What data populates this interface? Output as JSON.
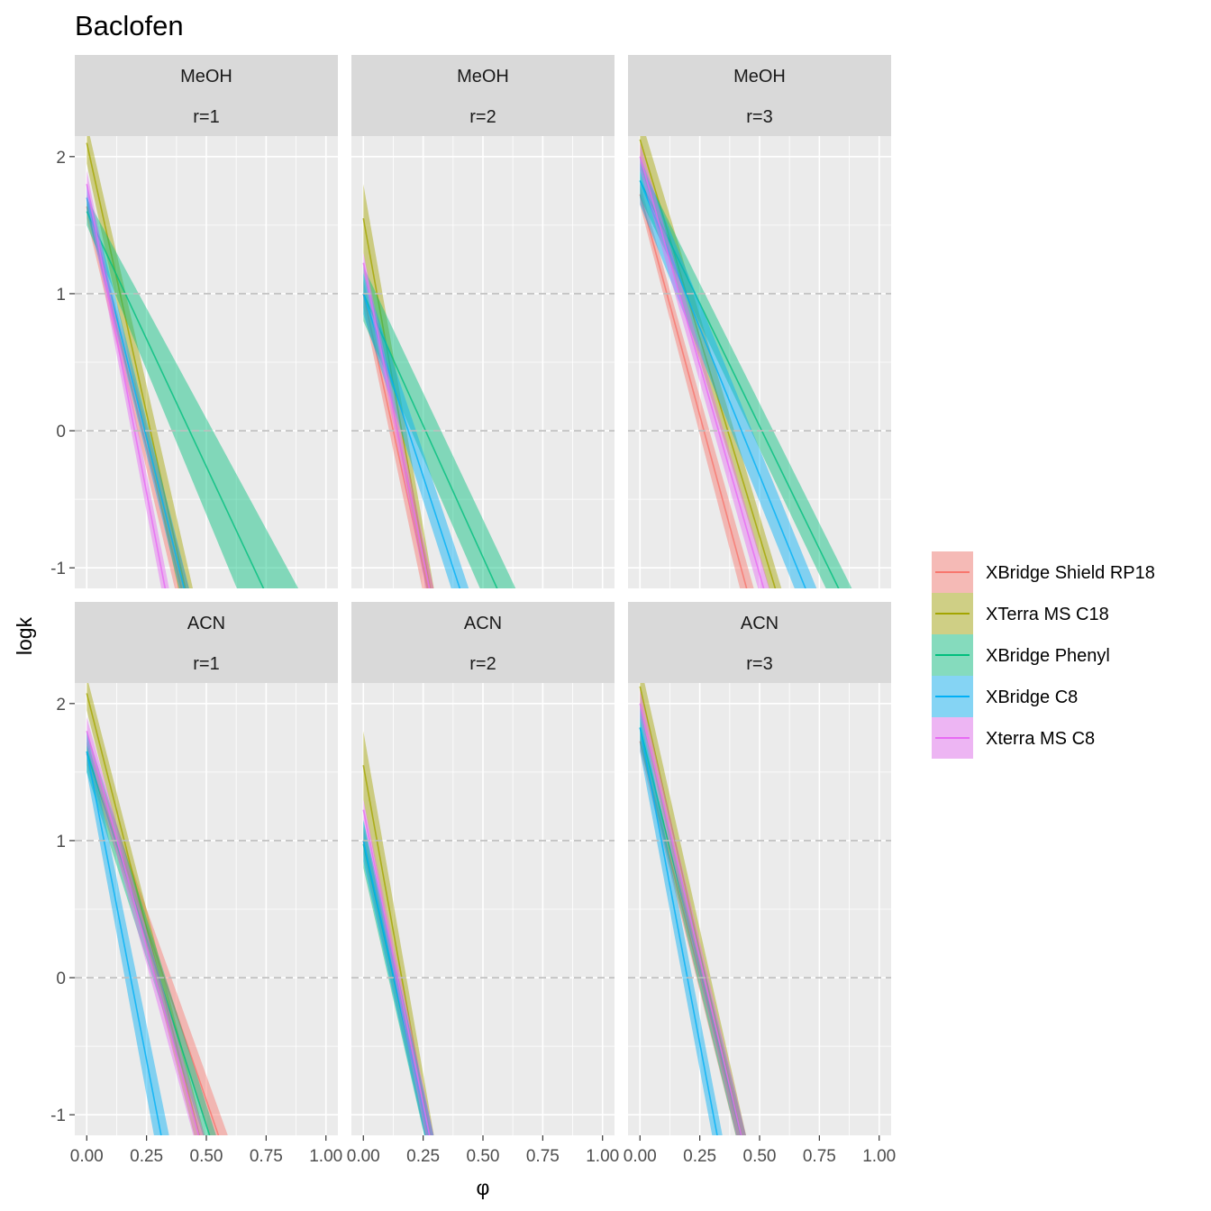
{
  "chart_data": {
    "type": "area",
    "title": "Baclofen",
    "xlabel": "φ",
    "ylabel": "logk",
    "xlim": [
      -0.05,
      1.05
    ],
    "ylim": [
      -1.15,
      2.15
    ],
    "x_ticks": [
      0.0,
      0.25,
      0.5,
      0.75,
      1.0
    ],
    "x_tick_labels": [
      "0.00",
      "0.25",
      "0.50",
      "0.75",
      "1.00"
    ],
    "y_ticks": [
      -1,
      0,
      1,
      2
    ],
    "y_tick_labels": [
      "-1",
      "0",
      "1",
      "2"
    ],
    "reference_lines_y": [
      0,
      1
    ],
    "legend_position": "right",
    "grid": true,
    "series": [
      {
        "name": "XBridge Shield RP18",
        "color": "#F8766D"
      },
      {
        "name": "XTerra MS C18",
        "color": "#A3A500"
      },
      {
        "name": "XBridge Phenyl",
        "color": "#00BF7D"
      },
      {
        "name": "XBridge C8",
        "color": "#00B0F6"
      },
      {
        "name": "Xterra MS C8",
        "color": "#E76BF3"
      }
    ],
    "panels": [
      {
        "row": 0,
        "col": 0,
        "modifier": "MeOH",
        "r": "r=1",
        "bands": [
          {
            "series": "XBridge Shield RP18",
            "x0": 0.0,
            "lo0": 1.55,
            "hi0": 1.72,
            "x1": 0.45,
            "lo1": -1.75,
            "hi1": -1.3
          },
          {
            "series": "XTerra MS C18",
            "x0": 0.0,
            "lo0": 1.95,
            "hi0": 2.25,
            "x1": 0.45,
            "lo1": -1.7,
            "hi1": -1.2
          },
          {
            "series": "XBridge Phenyl",
            "x0": 0.0,
            "lo0": 1.5,
            "hi0": 1.7,
            "x1": 0.9,
            "lo1": -2.3,
            "hi1": -1.2
          },
          {
            "series": "XBridge C8",
            "x0": 0.0,
            "lo0": 1.6,
            "hi0": 1.8,
            "x1": 0.45,
            "lo1": -1.6,
            "hi1": -1.3
          },
          {
            "series": "Xterra MS C8",
            "x0": 0.0,
            "lo0": 1.7,
            "hi0": 1.9,
            "x1": 0.35,
            "lo1": -1.5,
            "hi1": -1.2
          }
        ]
      },
      {
        "row": 0,
        "col": 1,
        "modifier": "MeOH",
        "r": "r=2",
        "bands": [
          {
            "series": "XBridge Shield RP18",
            "x0": 0.0,
            "lo0": 0.9,
            "hi0": 1.1,
            "x1": 0.3,
            "lo1": -1.6,
            "hi1": -1.2
          },
          {
            "series": "XTerra MS C18",
            "x0": 0.0,
            "lo0": 1.3,
            "hi0": 1.8,
            "x1": 0.3,
            "lo1": -1.5,
            "hi1": -1.2
          },
          {
            "series": "XBridge Phenyl",
            "x0": 0.0,
            "lo0": 0.8,
            "hi0": 1.2,
            "x1": 0.65,
            "lo1": -1.8,
            "hi1": -1.2
          },
          {
            "series": "XBridge C8",
            "x0": 0.0,
            "lo0": 0.85,
            "hi0": 1.15,
            "x1": 0.45,
            "lo1": -1.6,
            "hi1": -1.2
          },
          {
            "series": "Xterra MS C8",
            "x0": 0.0,
            "lo0": 1.15,
            "hi0": 1.3,
            "x1": 0.3,
            "lo1": -1.5,
            "hi1": -1.2
          }
        ]
      },
      {
        "row": 0,
        "col": 2,
        "modifier": "MeOH",
        "r": "r=3",
        "bands": [
          {
            "series": "XBridge Shield RP18",
            "x0": 0.0,
            "lo0": 1.65,
            "hi0": 1.8,
            "x1": 0.5,
            "lo1": -1.7,
            "hi1": -1.3
          },
          {
            "series": "XTerra MS C18",
            "x0": 0.0,
            "lo0": 1.95,
            "hi0": 2.3,
            "x1": 0.6,
            "lo1": -1.5,
            "hi1": -1.2
          },
          {
            "series": "XBridge Phenyl",
            "x0": 0.0,
            "lo0": 1.7,
            "hi0": 1.95,
            "x1": 0.9,
            "lo1": -1.6,
            "hi1": -1.2
          },
          {
            "series": "XBridge C8",
            "x0": 0.0,
            "lo0": 1.65,
            "hi0": 2.0,
            "x1": 0.75,
            "lo1": -1.6,
            "hi1": -1.2
          },
          {
            "series": "Xterra MS C8",
            "x0": 0.0,
            "lo0": 1.9,
            "hi0": 2.1,
            "x1": 0.55,
            "lo1": -1.5,
            "hi1": -1.2
          }
        ]
      },
      {
        "row": 1,
        "col": 0,
        "modifier": "ACN",
        "r": "r=1",
        "bands": [
          {
            "series": "XBridge Shield RP18",
            "x0": 0.0,
            "lo0": 1.55,
            "hi0": 1.72,
            "x1": 0.6,
            "lo1": -1.6,
            "hi1": -1.2
          },
          {
            "series": "XTerra MS C18",
            "x0": 0.0,
            "lo0": 1.95,
            "hi0": 2.2,
            "x1": 0.5,
            "lo1": -1.5,
            "hi1": -1.2
          },
          {
            "series": "XBridge Phenyl",
            "x0": 0.0,
            "lo0": 1.5,
            "hi0": 1.8,
            "x1": 0.55,
            "lo1": -1.5,
            "hi1": -1.2
          },
          {
            "series": "XBridge C8",
            "x0": 0.0,
            "lo0": 1.5,
            "hi0": 1.8,
            "x1": 0.35,
            "lo1": -1.8,
            "hi1": -1.2
          },
          {
            "series": "Xterra MS C8",
            "x0": 0.0,
            "lo0": 1.7,
            "hi0": 1.9,
            "x1": 0.5,
            "lo1": -1.5,
            "hi1": -1.2
          }
        ]
      },
      {
        "row": 1,
        "col": 1,
        "modifier": "ACN",
        "r": "r=2",
        "bands": [
          {
            "series": "XBridge Shield RP18",
            "x0": 0.0,
            "lo0": 0.9,
            "hi0": 1.1,
            "x1": 0.3,
            "lo1": -1.5,
            "hi1": -1.2
          },
          {
            "series": "XTerra MS C18",
            "x0": 0.0,
            "lo0": 1.3,
            "hi0": 1.8,
            "x1": 0.3,
            "lo1": -1.5,
            "hi1": -1.2
          },
          {
            "series": "XBridge Phenyl",
            "x0": 0.0,
            "lo0": 0.8,
            "hi0": 1.15,
            "x1": 0.3,
            "lo1": -1.5,
            "hi1": -1.2
          },
          {
            "series": "XBridge C8",
            "x0": 0.0,
            "lo0": 0.85,
            "hi0": 1.15,
            "x1": 0.3,
            "lo1": -1.5,
            "hi1": -1.2
          },
          {
            "series": "Xterra MS C8",
            "x0": 0.0,
            "lo0": 1.15,
            "hi0": 1.3,
            "x1": 0.3,
            "lo1": -1.5,
            "hi1": -1.2
          }
        ]
      },
      {
        "row": 1,
        "col": 2,
        "modifier": "ACN",
        "r": "r=3",
        "bands": [
          {
            "series": "XBridge Shield RP18",
            "x0": 0.0,
            "lo0": 1.65,
            "hi0": 1.8,
            "x1": 0.45,
            "lo1": -1.5,
            "hi1": -1.2
          },
          {
            "series": "XTerra MS C18",
            "x0": 0.0,
            "lo0": 1.95,
            "hi0": 2.3,
            "x1": 0.45,
            "lo1": -1.5,
            "hi1": -1.2
          },
          {
            "series": "XBridge Phenyl",
            "x0": 0.0,
            "lo0": 1.7,
            "hi0": 1.95,
            "x1": 0.45,
            "lo1": -1.5,
            "hi1": -1.2
          },
          {
            "series": "XBridge C8",
            "x0": 0.0,
            "lo0": 1.65,
            "hi0": 2.0,
            "x1": 0.35,
            "lo1": -1.6,
            "hi1": -1.2
          },
          {
            "series": "Xterra MS C8",
            "x0": 0.0,
            "lo0": 1.9,
            "hi0": 2.1,
            "x1": 0.45,
            "lo1": -1.5,
            "hi1": -1.2
          }
        ]
      }
    ]
  }
}
